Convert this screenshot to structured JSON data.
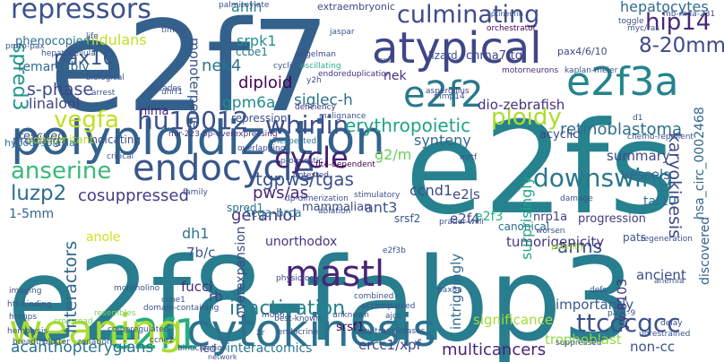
{
  "words": [
    {
      "text": "e2f7",
      "color": "#33618b"
    },
    {
      "text": "e2fs",
      "color": "#26828e"
    },
    {
      "text": "e2f8-fabp3",
      "color": "#287d8e"
    },
    {
      "text": "polyploidization",
      "color": "#33628d"
    },
    {
      "text": "endocycle",
      "color": "#39558c"
    },
    {
      "text": "cytokinesis",
      "color": "#2c718e"
    },
    {
      "text": "atypical",
      "color": "#404688"
    },
    {
      "text": "e2f3a",
      "color": "#25848e"
    },
    {
      "text": "e2f2",
      "color": "#2a788e"
    },
    {
      "text": "e2f1",
      "color": "#27ad81"
    },
    {
      "text": "weaning",
      "color": "#aadc32"
    },
    {
      "text": "repressors",
      "color": "#3b528b"
    },
    {
      "text": "culminating",
      "color": "#3e4a89"
    },
    {
      "text": "hu10012",
      "color": "#3b528b"
    },
    {
      "text": "whirlin",
      "color": "#3d4d8a"
    },
    {
      "text": "vegfa",
      "color": "#c2df23"
    },
    {
      "text": "ploidy",
      "color": "#addc30"
    },
    {
      "text": "hip14",
      "color": "#482979"
    },
    {
      "text": "8-20mm",
      "color": "#3e4989"
    },
    {
      "text": "pax10",
      "color": "#38598c"
    },
    {
      "text": "spred3",
      "color": "#1f958b"
    },
    {
      "text": "anserine",
      "color": "#38b977"
    },
    {
      "text": "luzp2",
      "color": "#2e6e8e"
    },
    {
      "text": "cosuppressed",
      "color": "#433e85"
    },
    {
      "text": "tgpws/tgas",
      "color": "#3b518b"
    },
    {
      "text": "cycle",
      "color": "#482173"
    },
    {
      "text": "downswing",
      "color": "#2a788e"
    },
    {
      "text": "hepatocytes",
      "color": "#2f6b8e"
    },
    {
      "text": "retinoblastoma",
      "color": "#2d708e"
    },
    {
      "text": "erythropoietic",
      "color": "#20a386"
    },
    {
      "text": "karyokinesis",
      "color": "#3e4989"
    },
    {
      "text": "dio-zebrafish",
      "color": "#46317e"
    },
    {
      "text": "nek4",
      "color": "#2c728e"
    },
    {
      "text": "gpm6a",
      "color": "#228c8d"
    },
    {
      "text": "s-phase",
      "color": "#3f4788"
    },
    {
      "text": "linalool",
      "color": "#414487"
    },
    {
      "text": "mastl",
      "color": "#482576"
    },
    {
      "text": "inactivation",
      "color": "#26828e"
    },
    {
      "text": "geraniol",
      "color": "#453781"
    },
    {
      "text": "interactors",
      "color": "#31688e"
    },
    {
      "text": "ttcccgcc",
      "color": "#3b528b"
    },
    {
      "text": "multicancers",
      "color": "#482475"
    },
    {
      "text": "acanthopterygians",
      "color": "#2c728e"
    },
    {
      "text": "nidulans",
      "color": "#c0df25"
    },
    {
      "text": "diploid",
      "color": "#440154"
    },
    {
      "text": "srpk1",
      "color": "#21918c"
    },
    {
      "text": "synteny",
      "color": "#31688e"
    },
    {
      "text": "anln",
      "color": "#26828e"
    },
    {
      "text": "monoterpene",
      "color": "#3b528b"
    },
    {
      "text": "siglec-h",
      "color": "#2c718e"
    },
    {
      "text": "pws/as",
      "color": "#482677"
    },
    {
      "text": "g2/m",
      "color": "#6ccd5a"
    },
    {
      "text": "ccnd1",
      "color": "#3e4a89"
    },
    {
      "text": "e2ls",
      "color": "#3e4c8a"
    },
    {
      "text": "e2f4",
      "color": "#414487"
    },
    {
      "text": "e2f3",
      "color": "#29af7f"
    },
    {
      "text": "taf10",
      "color": "#2c728e"
    },
    {
      "text": "pats",
      "color": "#39568c"
    },
    {
      "text": "vessels",
      "color": "#31688e"
    },
    {
      "text": "summary",
      "color": "#3e4989"
    },
    {
      "text": "hsa_circ_0002468",
      "color": "#31688e"
    },
    {
      "text": "progression",
      "color": "#453882"
    },
    {
      "text": "arms",
      "color": "#3b528b"
    },
    {
      "text": "ancient",
      "color": "#3e4a89"
    },
    {
      "text": "discovered",
      "color": "#33638d"
    },
    {
      "text": "nrp1a",
      "color": "#424186"
    },
    {
      "text": "canonical",
      "color": "#2e6f8e"
    },
    {
      "text": "tumorigenicity",
      "color": "#453781"
    },
    {
      "text": "surprisingly",
      "color": "#21a585"
    },
    {
      "text": "importantly",
      "color": "#38598c"
    },
    {
      "text": "trophoblast",
      "color": "#93d741"
    },
    {
      "text": "non-cc",
      "color": "#3b528b"
    },
    {
      "text": "yy-8103",
      "color": "#46307e"
    },
    {
      "text": "significance",
      "color": "#a5db36"
    },
    {
      "text": "intriguingly",
      "color": "#2f6c8e"
    },
    {
      "text": "ercc1/xpf",
      "color": "#3f4889"
    },
    {
      "text": "interactomics",
      "color": "#2a788e"
    },
    {
      "text": "led",
      "color": "#3d4e8a"
    },
    {
      "text": "srsf1",
      "color": "#440154"
    },
    {
      "text": "unorthodox",
      "color": "#46327e"
    },
    {
      "text": "overexpansion",
      "color": "#3e4a89"
    },
    {
      "text": "fucci",
      "color": "#472a7a"
    },
    {
      "text": "7b/c",
      "color": "#39558c"
    },
    {
      "text": "rb",
      "color": "#414487"
    },
    {
      "text": "dh1",
      "color": "#2c738e"
    },
    {
      "text": "anole",
      "color": "#d2e21b"
    },
    {
      "text": "1-5mm",
      "color": "#33638d"
    },
    {
      "text": "ant3",
      "color": "#3b528b"
    },
    {
      "text": "srsf2",
      "color": "#3b528b"
    },
    {
      "text": "spred1",
      "color": "#2c738e"
    },
    {
      "text": "profiling",
      "color": "#3e4a89"
    },
    {
      "text": "rescued",
      "color": "#39558c"
    },
    {
      "text": "indicating",
      "color": "#3d4d8a"
    },
    {
      "text": "concomitant",
      "color": "#b5de2b"
    },
    {
      "text": "nima",
      "color": "#482475"
    },
    {
      "text": "tcga-brca",
      "color": "#2a778e"
    },
    {
      "text": "mammalian",
      "color": "#3e4a89"
    },
    {
      "text": "repression",
      "color": "#3b528b"
    },
    {
      "text": "remarkably",
      "color": "#2f6b8e"
    },
    {
      "text": "phenocopied",
      "color": "#2c728e"
    },
    {
      "text": "chrna7-tg",
      "color": "#3f4788"
    },
    {
      "text": "pax4/6/10",
      "color": "#3e4a89"
    },
    {
      "text": "acyclic",
      "color": "#414487"
    },
    {
      "text": "nek",
      "color": "#46307e"
    },
    {
      "text": "extraembryonic",
      "color": "#3f4788"
    },
    {
      "text": "ccbe1",
      "color": "#2a788e"
    },
    {
      "text": "lizard",
      "color": "#3b528b"
    },
    {
      "text": "hypodysplasia",
      "color": "#2c728e"
    },
    {
      "text": "mir-223-5p-overexpressing",
      "color": "#46327e"
    },
    {
      "text": "chemo-repellent",
      "color": "#3b528b"
    },
    {
      "text": "regeneration",
      "color": "#3b528b"
    },
    {
      "text": "aspergillus",
      "color": "#414487"
    },
    {
      "text": "orchestrator",
      "color": "#440154"
    },
    {
      "text": "optineurin",
      "color": "#3b528b"
    },
    {
      "text": "motorneurons",
      "color": "#472c7a"
    },
    {
      "text": "kaplan-meier",
      "color": "#3b528b"
    },
    {
      "text": "endoreduplication",
      "color": "#46307e"
    },
    {
      "text": "oscillating",
      "color": "#29af7f"
    },
    {
      "text": "angelman",
      "color": "#3e4a89"
    },
    {
      "text": "cyclin",
      "color": "#3b528b"
    },
    {
      "text": "deficiency",
      "color": "#46327e"
    },
    {
      "text": "malignance",
      "color": "#3b528b"
    },
    {
      "text": "unexpected",
      "color": "#2c728e"
    },
    {
      "text": "overlapping",
      "color": "#3e4a89"
    },
    {
      "text": "critical",
      "color": "#3b528b"
    },
    {
      "text": "prognostic",
      "color": "#3b528b"
    },
    {
      "text": "flt4-dependent",
      "color": "#440154"
    },
    {
      "text": "untested",
      "color": "#3f4788"
    },
    {
      "text": "dp-dimerization",
      "color": "#3b528b"
    },
    {
      "text": "ablation",
      "color": "#3b528b"
    },
    {
      "text": "stimulatory",
      "color": "#3b528b"
    },
    {
      "text": "physiologic",
      "color": "#3e4a89"
    },
    {
      "text": "domain-containing",
      "color": "#3b528b"
    },
    {
      "text": "combined",
      "color": "#3b528b"
    },
    {
      "text": "accompanied",
      "color": "#3b528b"
    },
    {
      "text": "best-known",
      "color": "#3e4a89"
    },
    {
      "text": "endocrine",
      "color": "#3b528b"
    },
    {
      "text": "acyltransferases",
      "color": "#3b528b"
    },
    {
      "text": "unknown",
      "color": "#3b528b"
    },
    {
      "text": "binucleation",
      "color": "#3b528b"
    },
    {
      "text": "network",
      "color": "#3b528b"
    },
    {
      "text": "hemolysis",
      "color": "#3b528b"
    },
    {
      "text": "breadth",
      "color": "#3b528b"
    },
    {
      "text": "plotter",
      "color": "#3b528b"
    },
    {
      "text": "zonation",
      "color": "#3b528b"
    },
    {
      "text": "co-upregulated",
      "color": "#3b528b"
    },
    {
      "text": "ccne2",
      "color": "#3b528b"
    },
    {
      "text": "ccne1",
      "color": "#3b528b"
    },
    {
      "text": "mono",
      "color": "#3b528b"
    },
    {
      "text": "ajcc",
      "color": "#3b528b"
    },
    {
      "text": "pax1-9",
      "color": "#3b528b"
    },
    {
      "text": "unrestrained",
      "color": "#3b528b"
    },
    {
      "text": "suppressed",
      "color": "#3b528b"
    },
    {
      "text": "delay",
      "color": "#3b528b"
    },
    {
      "text": "potently",
      "color": "#aadc32"
    },
    {
      "text": "worsen",
      "color": "#3b528b"
    },
    {
      "text": "prader-willi",
      "color": "#3b528b"
    },
    {
      "text": "damage",
      "color": "#3b528b"
    },
    {
      "text": "htt-binding",
      "color": "#3b528b"
    },
    {
      "text": "imaging",
      "color": "#3b528b"
    },
    {
      "text": "hnrnps",
      "color": "#3b528b"
    },
    {
      "text": "crossroad",
      "color": "#7ad151"
    },
    {
      "text": "resembles",
      "color": "#7ad151"
    },
    {
      "text": "morpholino",
      "color": "#3b528b"
    },
    {
      "text": "palmitoylate",
      "color": "#3b528b"
    },
    {
      "text": "timely",
      "color": "#3b528b"
    },
    {
      "text": "life",
      "color": "#3b528b"
    },
    {
      "text": "proto-pax",
      "color": "#3b528b"
    },
    {
      "text": "hepatocellular",
      "color": "#3b528b"
    },
    {
      "text": "biological",
      "color": "#3b528b"
    },
    {
      "text": "decades",
      "color": "#3b528b"
    },
    {
      "text": "jaspar",
      "color": "#3b528b"
    },
    {
      "text": "axis",
      "color": "#3b528b"
    },
    {
      "text": "mb-mda-231",
      "color": "#3b528b"
    },
    {
      "text": "toggle",
      "color": "#3b528b"
    },
    {
      "text": "myc/ras",
      "color": "#3b528b"
    },
    {
      "text": "arrest",
      "color": "#3b528b"
    },
    {
      "text": "family",
      "color": "#3b528b"
    },
    {
      "text": "uhrf1",
      "color": "#3b528b"
    },
    {
      "text": "y2h",
      "color": "#3b528b"
    },
    {
      "text": "mmp14",
      "color": "#3b528b"
    },
    {
      "text": "d1",
      "color": "#3b528b"
    },
    {
      "text": "pax8a",
      "color": "#3b528b"
    },
    {
      "text": "defs",
      "color": "#3b528b"
    },
    {
      "text": "anemia",
      "color": "#3b528b"
    },
    {
      "text": "2r",
      "color": "#3b528b"
    },
    {
      "text": "e2f3b",
      "color": "#3b528b"
    },
    {
      "text": "mrtf",
      "color": "#3b528b"
    }
  ]
}
